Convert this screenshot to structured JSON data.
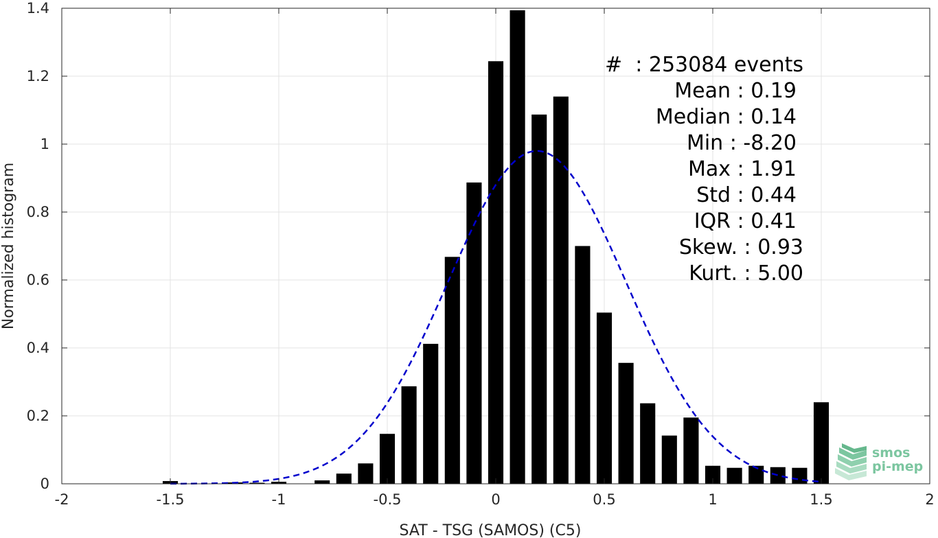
{
  "chart_data": {
    "type": "bar",
    "xlabel": "SAT - TSG (SAMOS) (C5)",
    "ylabel": "Normalized histogram",
    "xlim": [
      -2,
      2
    ],
    "ylim": [
      0,
      1.4
    ],
    "xticks": [
      -2,
      -1.5,
      -1,
      -0.5,
      0,
      0.5,
      1,
      1.5,
      2
    ],
    "xtick_labels": [
      "-2",
      "-1.5",
      "-1",
      "-0.5",
      "0",
      "0.5",
      "1",
      "1.5",
      "2"
    ],
    "yticks": [
      0,
      0.2,
      0.4,
      0.6,
      0.8,
      1,
      1.2,
      1.4
    ],
    "ytick_labels": [
      "0",
      "0.2",
      "0.4",
      "0.6",
      "0.8",
      "1",
      "1.2",
      "1.4"
    ],
    "grid": true,
    "bar_color": "#000000",
    "bins": [
      {
        "x": -1.5,
        "y": 0.008
      },
      {
        "x": -1.4,
        "y": 0.0
      },
      {
        "x": -1.3,
        "y": 0.0
      },
      {
        "x": -1.2,
        "y": 0.004
      },
      {
        "x": -1.1,
        "y": 0.003
      },
      {
        "x": -1.0,
        "y": 0.006
      },
      {
        "x": -0.9,
        "y": 0.0
      },
      {
        "x": -0.8,
        "y": 0.01
      },
      {
        "x": -0.7,
        "y": 0.03
      },
      {
        "x": -0.6,
        "y": 0.06
      },
      {
        "x": -0.5,
        "y": 0.147
      },
      {
        "x": -0.4,
        "y": 0.287
      },
      {
        "x": -0.3,
        "y": 0.412
      },
      {
        "x": -0.2,
        "y": 0.668
      },
      {
        "x": -0.1,
        "y": 0.887
      },
      {
        "x": 0.0,
        "y": 1.244
      },
      {
        "x": 0.1,
        "y": 1.394
      },
      {
        "x": 0.2,
        "y": 1.087
      },
      {
        "x": 0.3,
        "y": 1.14
      },
      {
        "x": 0.4,
        "y": 0.7
      },
      {
        "x": 0.5,
        "y": 0.504
      },
      {
        "x": 0.6,
        "y": 0.356
      },
      {
        "x": 0.7,
        "y": 0.237
      },
      {
        "x": 0.8,
        "y": 0.142
      },
      {
        "x": 0.9,
        "y": 0.195
      },
      {
        "x": 1.0,
        "y": 0.053
      },
      {
        "x": 1.1,
        "y": 0.047
      },
      {
        "x": 1.2,
        "y": 0.053
      },
      {
        "x": 1.3,
        "y": 0.049
      },
      {
        "x": 1.4,
        "y": 0.047
      },
      {
        "x": 1.5,
        "y": 0.24
      }
    ],
    "bin_width": 0.07,
    "fit_curve": {
      "type": "gaussian",
      "mean": 0.19,
      "std": 0.41,
      "peak": 0.98,
      "x_range": [
        -1.5,
        1.5
      ],
      "color": "#0000cc",
      "style": "dashed"
    },
    "stats": {
      "events": "#  : 253084 events",
      "mean": "Mean : 0.19",
      "median": "Median : 0.14",
      "min": "Min : -8.20",
      "max": "Max : 1.91",
      "std": "Std : 0.44",
      "iqr": "IQR : 0.41",
      "skew": "Skew. : 0.93",
      "kurt": "Kurt. : 5.00"
    }
  },
  "logo": {
    "line1": "smos",
    "line2": "pi-mep",
    "color": "#7cc6a0"
  }
}
